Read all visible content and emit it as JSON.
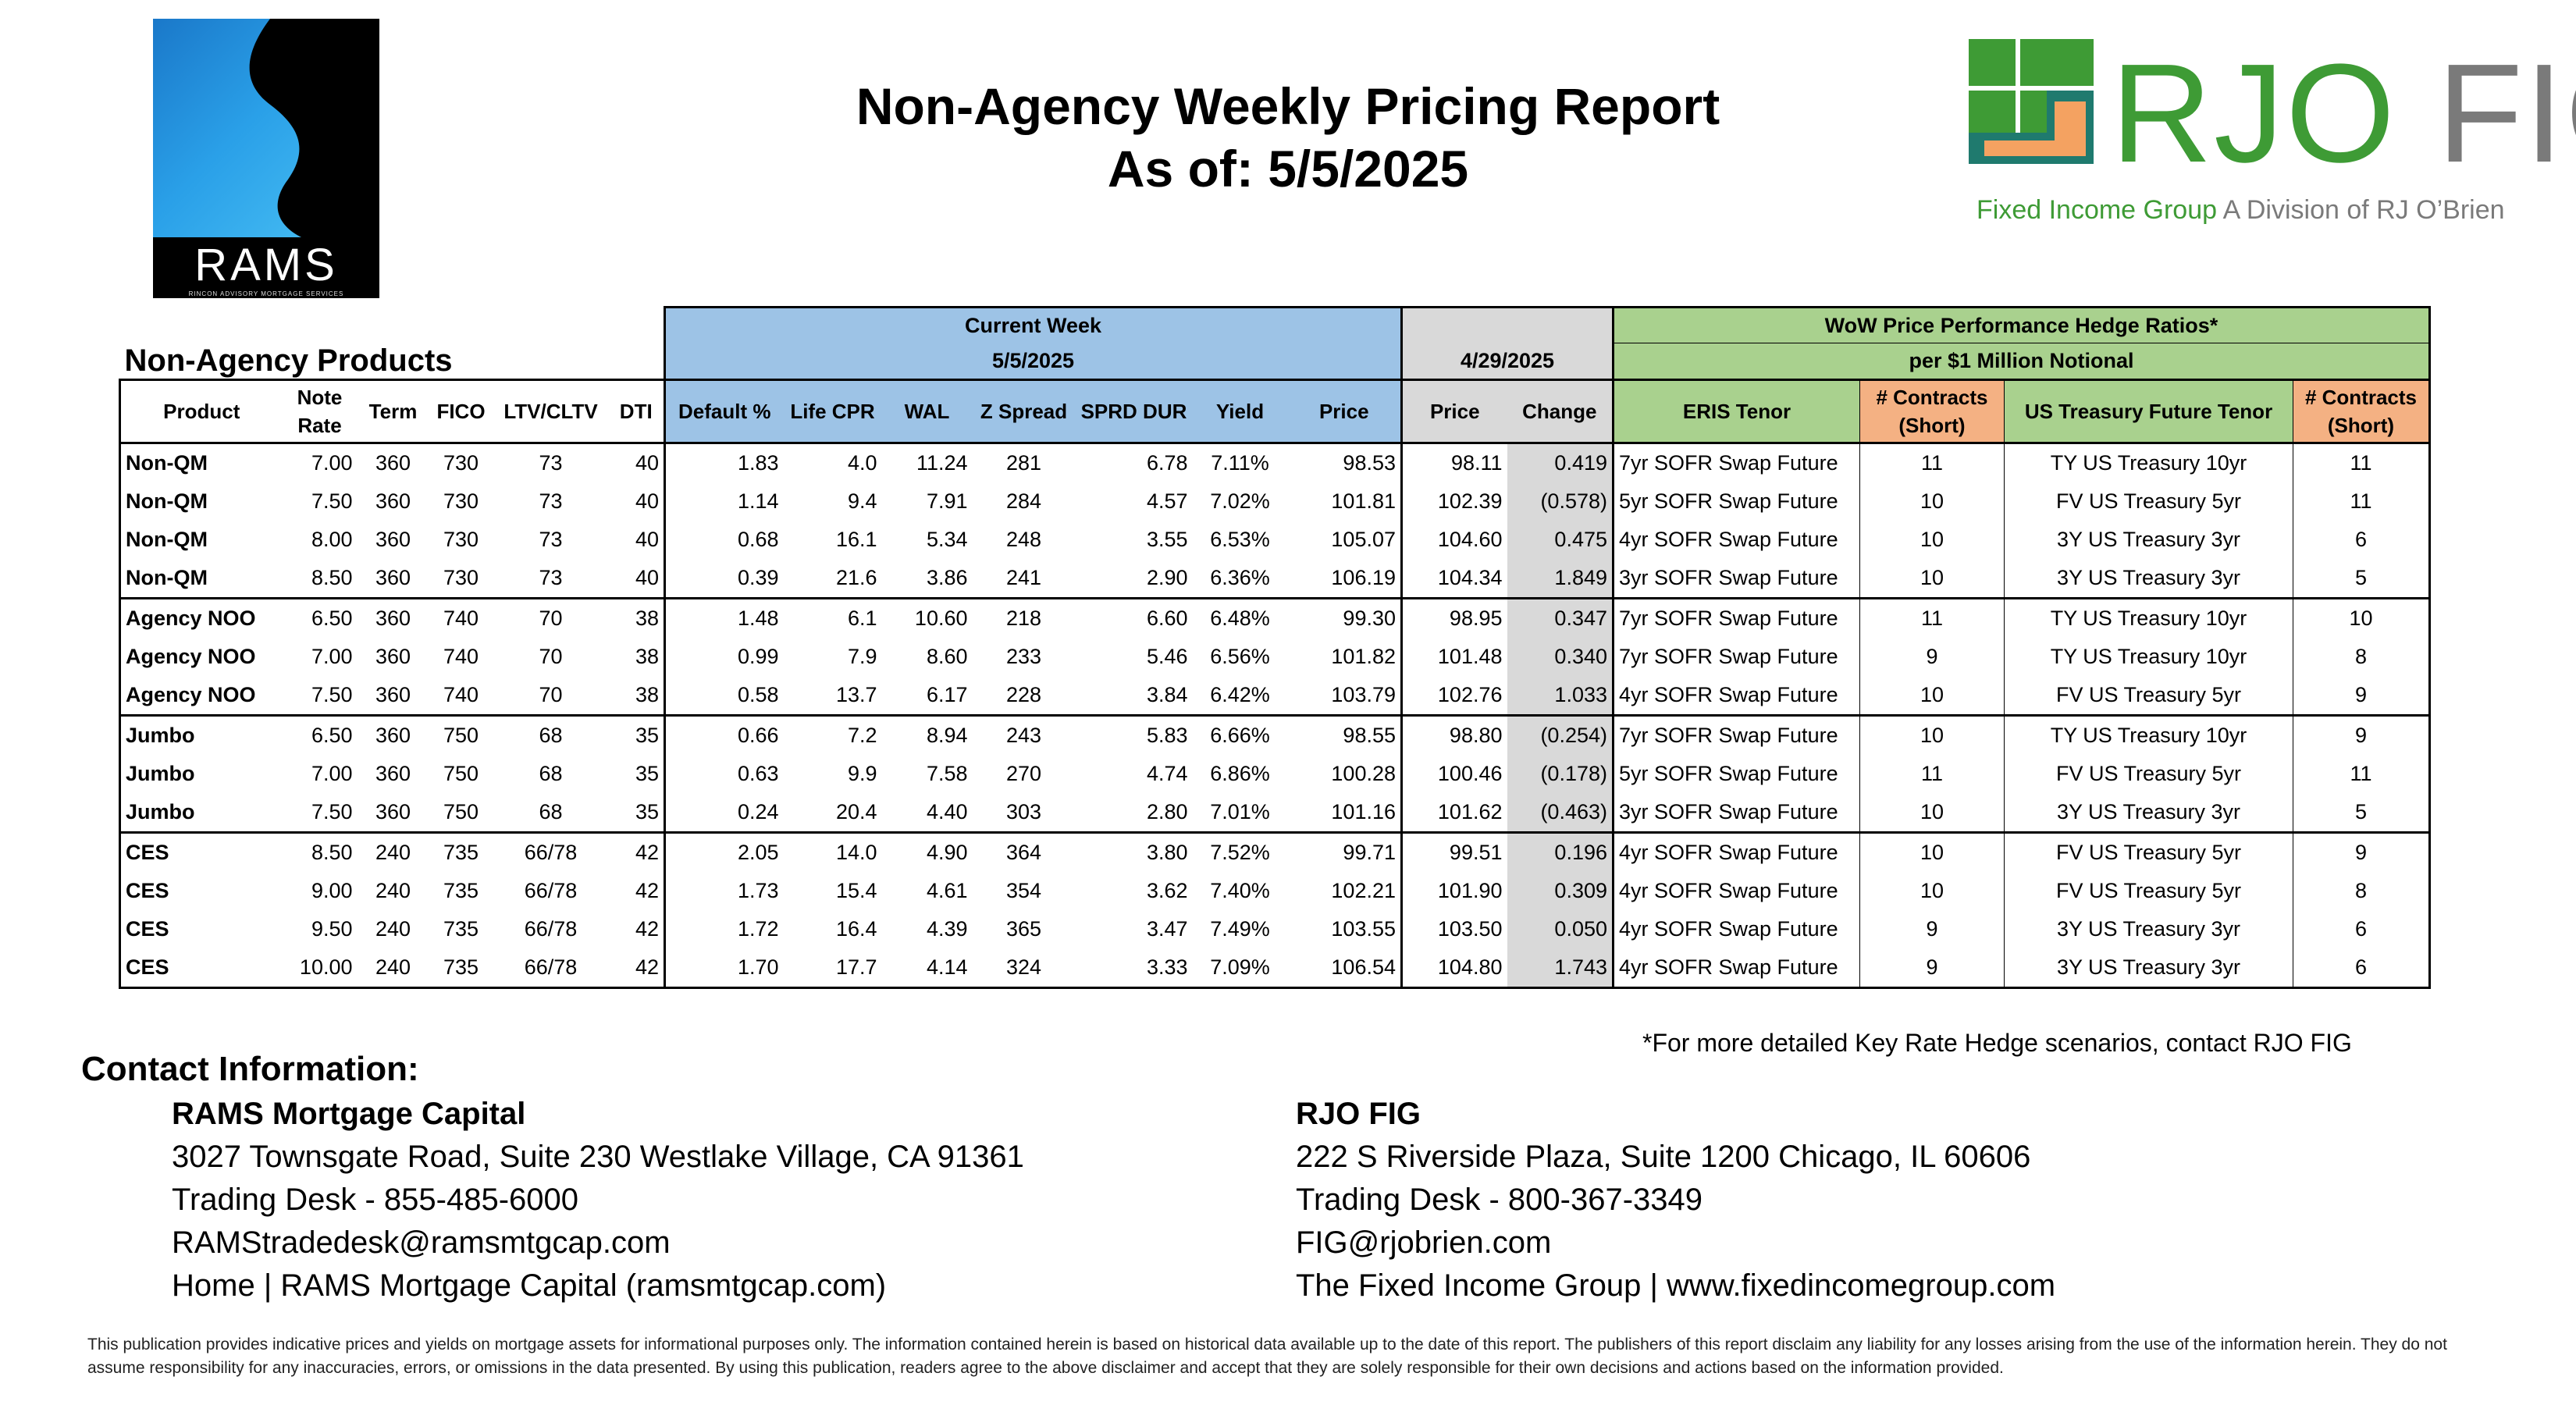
{
  "header": {
    "title_line1": "Non-Agency Weekly Pricing Report",
    "title_line2": "As of: 5/5/2025"
  },
  "logos": {
    "rams": {
      "wordmark": "RAMS",
      "tagline": "RINCON ADVISORY MORTGAGE SERVICES"
    },
    "rjo": {
      "brand_rjo": "RJO",
      "brand_fig": "FIG",
      "sub_green": "Fixed Income Group",
      "sub_gray": "A Division of RJ O’Brien"
    }
  },
  "table": {
    "section_label": "Non-Agency Products",
    "current_week_label": "Current Week",
    "current_week_date": "5/5/2025",
    "prior_date": "4/29/2025",
    "hedge_title": "WoW Price Performance Hedge Ratios*",
    "hedge_subtitle": "per $1 Million Notional",
    "columns": {
      "product": "Product",
      "note_rate": "Note Rate",
      "term": "Term",
      "fico": "FICO",
      "ltv": "LTV/CLTV",
      "dti": "DTI",
      "default": "Default %",
      "life_cpr": "Life CPR",
      "wal": "WAL",
      "z_spread": "Z Spread",
      "sprd_dur": "SPRD DUR",
      "yield": "Yield",
      "price": "Price",
      "prior_price": "Price",
      "change": "Change",
      "eris": "ERIS Tenor",
      "contracts1": "# Contracts (Short)",
      "ust": "US Treasury Future Tenor",
      "contracts2": "# Contracts (Short)"
    },
    "rows": [
      {
        "product": "Non-QM",
        "note_rate": "7.00",
        "term": "360",
        "fico": "730",
        "ltv": "73",
        "dti": "40",
        "default": "1.83",
        "life_cpr": "4.0",
        "wal": "11.24",
        "z_spread": "281",
        "sprd_dur": "6.78",
        "yield": "7.11%",
        "price": "98.53",
        "prior_price": "98.11",
        "change": "0.419",
        "eris": "7yr SOFR Swap Future",
        "contracts1": "11",
        "ust": "TY US Treasury 10yr",
        "contracts2": "11"
      },
      {
        "product": "Non-QM",
        "note_rate": "7.50",
        "term": "360",
        "fico": "730",
        "ltv": "73",
        "dti": "40",
        "default": "1.14",
        "life_cpr": "9.4",
        "wal": "7.91",
        "z_spread": "284",
        "sprd_dur": "4.57",
        "yield": "7.02%",
        "price": "101.81",
        "prior_price": "102.39",
        "change": "(0.578)",
        "eris": "5yr SOFR Swap Future",
        "contracts1": "10",
        "ust": "FV US Treasury 5yr",
        "contracts2": "11"
      },
      {
        "product": "Non-QM",
        "note_rate": "8.00",
        "term": "360",
        "fico": "730",
        "ltv": "73",
        "dti": "40",
        "default": "0.68",
        "life_cpr": "16.1",
        "wal": "5.34",
        "z_spread": "248",
        "sprd_dur": "3.55",
        "yield": "6.53%",
        "price": "105.07",
        "prior_price": "104.60",
        "change": "0.475",
        "eris": "4yr SOFR Swap Future",
        "contracts1": "10",
        "ust": "3Y US Treasury 3yr",
        "contracts2": "6"
      },
      {
        "product": "Non-QM",
        "note_rate": "8.50",
        "term": "360",
        "fico": "730",
        "ltv": "73",
        "dti": "40",
        "default": "0.39",
        "life_cpr": "21.6",
        "wal": "3.86",
        "z_spread": "241",
        "sprd_dur": "2.90",
        "yield": "6.36%",
        "price": "106.19",
        "prior_price": "104.34",
        "change": "1.849",
        "eris": "3yr SOFR Swap Future",
        "contracts1": "10",
        "ust": "3Y US Treasury 3yr",
        "contracts2": "5"
      },
      {
        "product": "Agency NOO",
        "note_rate": "6.50",
        "term": "360",
        "fico": "740",
        "ltv": "70",
        "dti": "38",
        "default": "1.48",
        "life_cpr": "6.1",
        "wal": "10.60",
        "z_spread": "218",
        "sprd_dur": "6.60",
        "yield": "6.48%",
        "price": "99.30",
        "prior_price": "98.95",
        "change": "0.347",
        "eris": "7yr SOFR Swap Future",
        "contracts1": "11",
        "ust": "TY US Treasury 10yr",
        "contracts2": "10"
      },
      {
        "product": "Agency NOO",
        "note_rate": "7.00",
        "term": "360",
        "fico": "740",
        "ltv": "70",
        "dti": "38",
        "default": "0.99",
        "life_cpr": "7.9",
        "wal": "8.60",
        "z_spread": "233",
        "sprd_dur": "5.46",
        "yield": "6.56%",
        "price": "101.82",
        "prior_price": "101.48",
        "change": "0.340",
        "eris": "7yr SOFR Swap Future",
        "contracts1": "9",
        "ust": "TY US Treasury 10yr",
        "contracts2": "8"
      },
      {
        "product": "Agency NOO",
        "note_rate": "7.50",
        "term": "360",
        "fico": "740",
        "ltv": "70",
        "dti": "38",
        "default": "0.58",
        "life_cpr": "13.7",
        "wal": "6.17",
        "z_spread": "228",
        "sprd_dur": "3.84",
        "yield": "6.42%",
        "price": "103.79",
        "prior_price": "102.76",
        "change": "1.033",
        "eris": "4yr SOFR Swap Future",
        "contracts1": "10",
        "ust": "FV US Treasury 5yr",
        "contracts2": "9"
      },
      {
        "product": "Jumbo",
        "note_rate": "6.50",
        "term": "360",
        "fico": "750",
        "ltv": "68",
        "dti": "35",
        "default": "0.66",
        "life_cpr": "7.2",
        "wal": "8.94",
        "z_spread": "243",
        "sprd_dur": "5.83",
        "yield": "6.66%",
        "price": "98.55",
        "prior_price": "98.80",
        "change": "(0.254)",
        "eris": "7yr SOFR Swap Future",
        "contracts1": "10",
        "ust": "TY US Treasury 10yr",
        "contracts2": "9"
      },
      {
        "product": "Jumbo",
        "note_rate": "7.00",
        "term": "360",
        "fico": "750",
        "ltv": "68",
        "dti": "35",
        "default": "0.63",
        "life_cpr": "9.9",
        "wal": "7.58",
        "z_spread": "270",
        "sprd_dur": "4.74",
        "yield": "6.86%",
        "price": "100.28",
        "prior_price": "100.46",
        "change": "(0.178)",
        "eris": "5yr SOFR Swap Future",
        "contracts1": "11",
        "ust": "FV US Treasury 5yr",
        "contracts2": "11"
      },
      {
        "product": "Jumbo",
        "note_rate": "7.50",
        "term": "360",
        "fico": "750",
        "ltv": "68",
        "dti": "35",
        "default": "0.24",
        "life_cpr": "20.4",
        "wal": "4.40",
        "z_spread": "303",
        "sprd_dur": "2.80",
        "yield": "7.01%",
        "price": "101.16",
        "prior_price": "101.62",
        "change": "(0.463)",
        "eris": "3yr SOFR Swap Future",
        "contracts1": "10",
        "ust": "3Y US Treasury 3yr",
        "contracts2": "5"
      },
      {
        "product": "CES",
        "note_rate": "8.50",
        "term": "240",
        "fico": "735",
        "ltv": "66/78",
        "dti": "42",
        "default": "2.05",
        "life_cpr": "14.0",
        "wal": "4.90",
        "z_spread": "364",
        "sprd_dur": "3.80",
        "yield": "7.52%",
        "price": "99.71",
        "prior_price": "99.51",
        "change": "0.196",
        "eris": "4yr SOFR Swap Future",
        "contracts1": "10",
        "ust": "FV US Treasury 5yr",
        "contracts2": "9"
      },
      {
        "product": "CES",
        "note_rate": "9.00",
        "term": "240",
        "fico": "735",
        "ltv": "66/78",
        "dti": "42",
        "default": "1.73",
        "life_cpr": "15.4",
        "wal": "4.61",
        "z_spread": "354",
        "sprd_dur": "3.62",
        "yield": "7.40%",
        "price": "102.21",
        "prior_price": "101.90",
        "change": "0.309",
        "eris": "4yr SOFR Swap Future",
        "contracts1": "10",
        "ust": "FV US Treasury 5yr",
        "contracts2": "8"
      },
      {
        "product": "CES",
        "note_rate": "9.50",
        "term": "240",
        "fico": "735",
        "ltv": "66/78",
        "dti": "42",
        "default": "1.72",
        "life_cpr": "16.4",
        "wal": "4.39",
        "z_spread": "365",
        "sprd_dur": "3.47",
        "yield": "7.49%",
        "price": "103.55",
        "prior_price": "103.50",
        "change": "0.050",
        "eris": "4yr SOFR Swap Future",
        "contracts1": "9",
        "ust": "3Y US Treasury 3yr",
        "contracts2": "6"
      },
      {
        "product": "CES",
        "note_rate": "10.00",
        "term": "240",
        "fico": "735",
        "ltv": "66/78",
        "dti": "42",
        "default": "1.70",
        "life_cpr": "17.7",
        "wal": "4.14",
        "z_spread": "324",
        "sprd_dur": "3.33",
        "yield": "7.09%",
        "price": "106.54",
        "prior_price": "104.80",
        "change": "1.743",
        "eris": "4yr SOFR Swap Future",
        "contracts1": "9",
        "ust": "3Y US Treasury 3yr",
        "contracts2": "6"
      }
    ]
  },
  "footnote": "*For more detailed Key Rate Hedge scenarios, contact RJO FIG",
  "contact": {
    "heading": "Contact Information:",
    "rams": {
      "name": "RAMS Mortgage Capital",
      "address": "3027 Townsgate Road, Suite 230 Westlake Village, CA 91361",
      "desk": "Trading Desk - 855-485-6000",
      "email": "RAMStradedesk@ramsmtgcap.com",
      "web": "Home | RAMS Mortgage Capital (ramsmtgcap.com)"
    },
    "rjo": {
      "name": "RJO FIG",
      "address": "222 S Riverside Plaza, Suite 1200 Chicago, IL 60606",
      "desk": "Trading Desk - 800-367-3349",
      "email": "FIG@rjobrien.com",
      "web": "The Fixed Income Group | www.fixedincomegroup.com"
    }
  },
  "disclaimer": "This publication provides indicative prices and yields on mortgage assets for informational purposes only. The information contained herein is based on historical data available up to the date of this report. The publishers of this report disclaim any liability for any losses arising from the use of the information herein. They do not assume responsibility for any inaccuracies, errors, or omissions in the data presented. By using this publication, readers agree to the above disclaimer and accept that they are solely responsible for their own decisions and actions based on the information provided.",
  "colors": {
    "current_week": "#9dc3e6",
    "prior_week": "#d9d9d9",
    "hedge": "#a9d18e",
    "contracts": "#f4b183",
    "rjo_green": "#3e9b35"
  }
}
